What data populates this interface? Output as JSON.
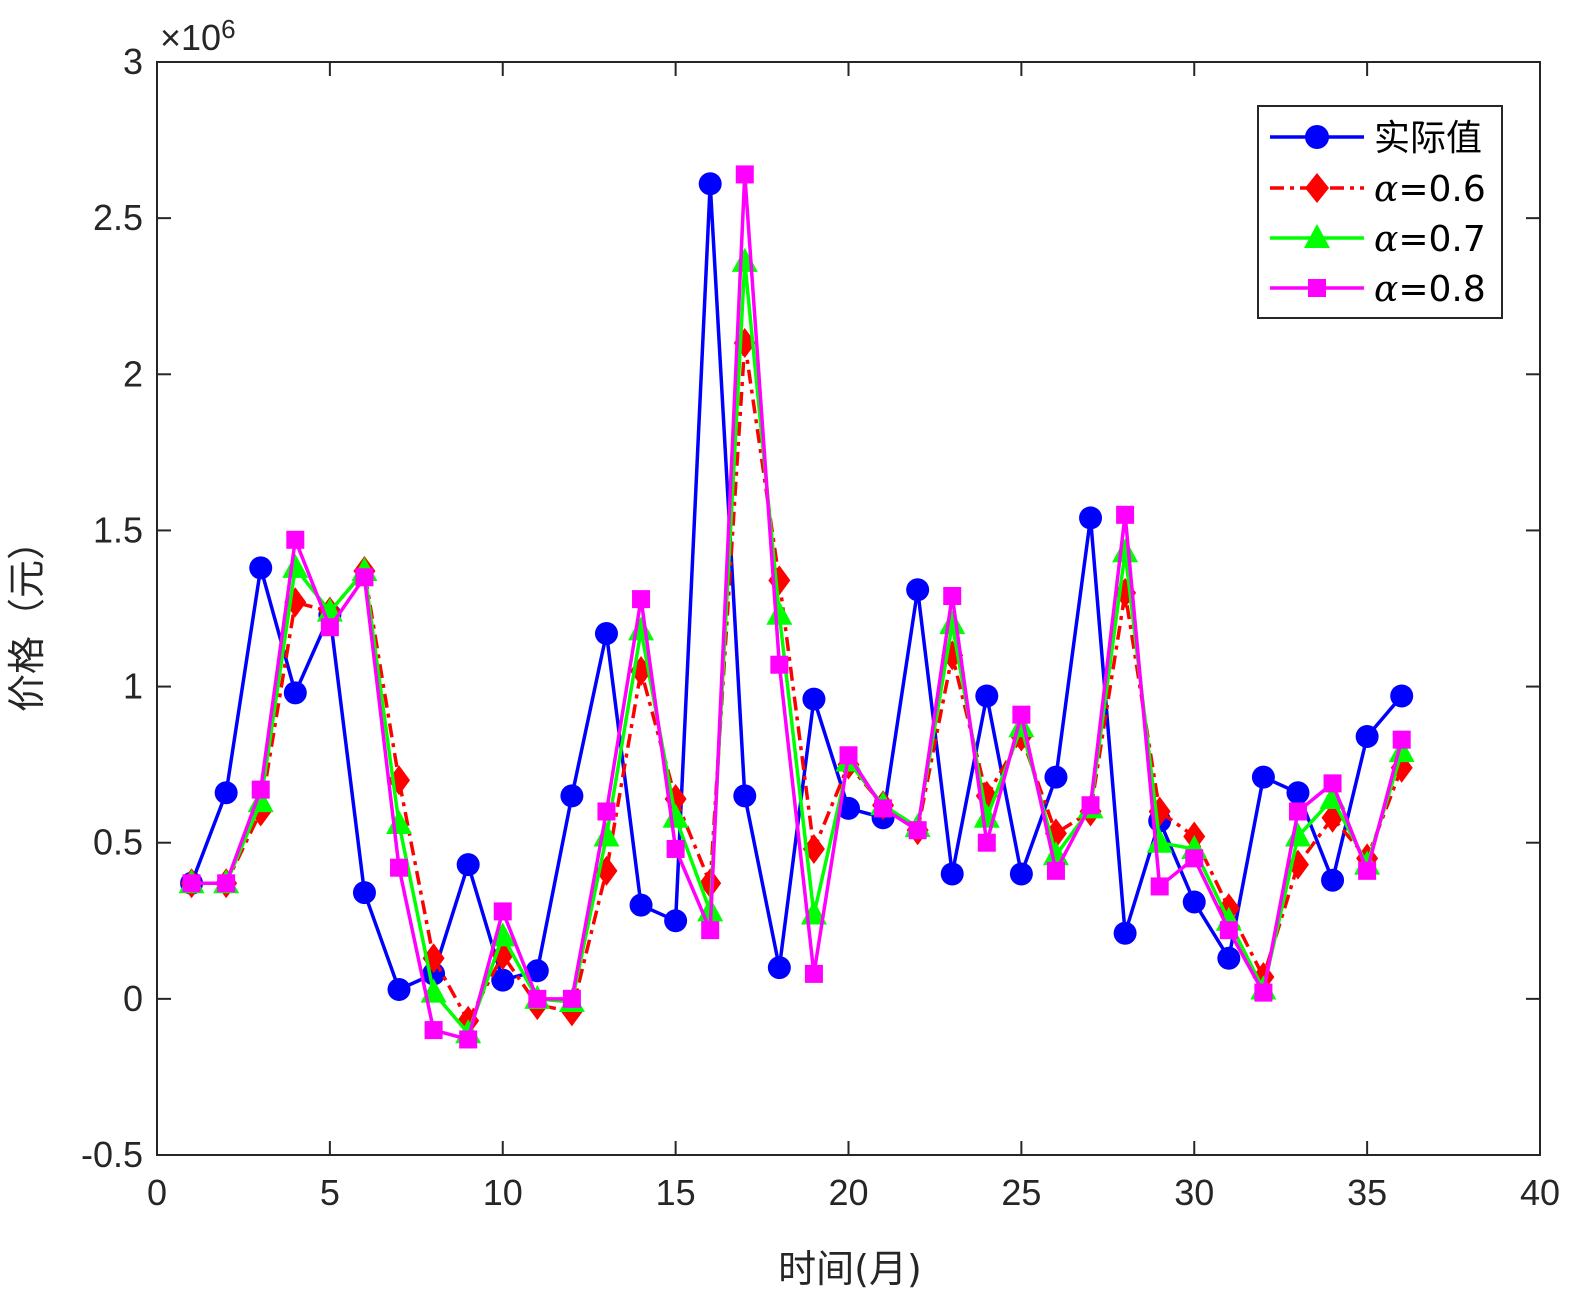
{
  "chart_data": {
    "type": "line",
    "title": "",
    "xlabel": "时间(月)",
    "ylabel": "价格（元）",
    "exponent_label": "×10",
    "exponent_power": "6",
    "xlim": [
      0,
      40
    ],
    "ylim": [
      -0.5,
      3
    ],
    "xticks": [
      0,
      5,
      10,
      15,
      20,
      25,
      30,
      35,
      40
    ],
    "xtick_labels": [
      "0",
      "5",
      "10",
      "15",
      "20",
      "25",
      "30",
      "35",
      "40"
    ],
    "yticks": [
      -0.5,
      0,
      0.5,
      1,
      1.5,
      2,
      2.5,
      3
    ],
    "ytick_labels": [
      "-0.5",
      "0",
      "0.5",
      "1",
      "1.5",
      "2",
      "2.5",
      "3"
    ],
    "legend_position": "top-right",
    "x": [
      1,
      2,
      3,
      4,
      5,
      6,
      7,
      8,
      9,
      10,
      11,
      12,
      13,
      14,
      15,
      16,
      17,
      18,
      19,
      20,
      21,
      22,
      23,
      24,
      25,
      26,
      27,
      28,
      29,
      30,
      31,
      32,
      33,
      34,
      35,
      36
    ],
    "series": [
      {
        "name": "实际值",
        "prefix": "",
        "color": "#0000ff",
        "dash": "",
        "marker": "circle",
        "values": [
          0.37,
          0.66,
          1.38,
          0.98,
          1.23,
          0.34,
          0.03,
          0.08,
          0.43,
          0.06,
          0.09,
          0.65,
          1.17,
          0.3,
          0.25,
          2.61,
          0.65,
          0.1,
          0.96,
          0.61,
          0.58,
          1.31,
          0.4,
          0.97,
          0.4,
          0.71,
          1.54,
          0.21,
          0.57,
          0.31,
          0.13,
          0.71,
          0.66,
          0.38,
          0.84,
          0.97
        ]
      },
      {
        "name": "=0.6",
        "prefix": "α",
        "color": "#ff0000",
        "dash": "14,6,4,6",
        "marker": "diamond",
        "values": [
          0.37,
          0.37,
          0.6,
          1.27,
          1.24,
          1.37,
          0.7,
          0.13,
          -0.07,
          0.14,
          -0.02,
          -0.04,
          0.41,
          1.05,
          0.64,
          0.37,
          2.1,
          1.34,
          0.48,
          0.75,
          0.62,
          0.54,
          1.1,
          0.65,
          0.84,
          0.53,
          0.6,
          1.3,
          0.6,
          0.52,
          0.29,
          0.07,
          0.43,
          0.58,
          0.45,
          0.74
        ]
      },
      {
        "name": "=0.7",
        "prefix": "α",
        "color": "#00ff00",
        "dash": "",
        "marker": "triangle",
        "values": [
          0.37,
          0.37,
          0.63,
          1.38,
          1.24,
          1.37,
          0.56,
          0.02,
          -0.11,
          0.2,
          0.0,
          -0.01,
          0.52,
          1.18,
          0.58,
          0.28,
          2.36,
          1.23,
          0.27,
          0.76,
          0.62,
          0.55,
          1.2,
          0.58,
          0.87,
          0.46,
          0.61,
          1.43,
          0.5,
          0.48,
          0.25,
          0.03,
          0.52,
          0.64,
          0.43,
          0.79
        ]
      },
      {
        "name": "=0.8",
        "prefix": "α",
        "color": "#ff00ff",
        "dash": "",
        "marker": "square",
        "values": [
          0.37,
          0.37,
          0.67,
          1.47,
          1.19,
          1.35,
          0.42,
          -0.1,
          -0.13,
          0.28,
          0.0,
          0.0,
          0.6,
          1.28,
          0.48,
          0.22,
          2.64,
          1.07,
          0.08,
          0.78,
          0.61,
          0.54,
          1.29,
          0.5,
          0.91,
          0.41,
          0.62,
          1.55,
          0.36,
          0.45,
          0.22,
          0.02,
          0.6,
          0.69,
          0.41,
          0.83
        ]
      }
    ]
  }
}
